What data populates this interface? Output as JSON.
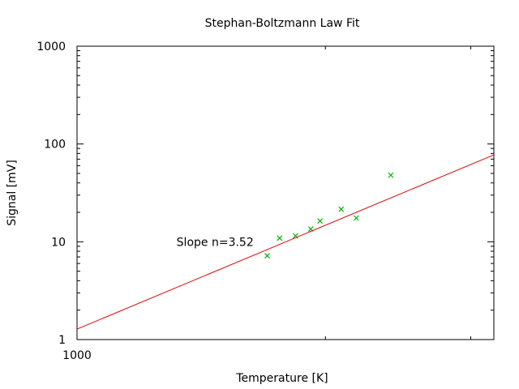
{
  "chart_data": {
    "type": "scatter",
    "title": "Stephan-Boltzmann Law Fit",
    "xlabel": "Temperature [K]",
    "ylabel": "Signal [mV]",
    "x_scale": "log",
    "y_scale": "log",
    "xlim": [
      1000,
      3200
    ],
    "ylim": [
      1,
      1000
    ],
    "x_tick_labels": [
      {
        "value": 1000,
        "label": "1000"
      }
    ],
    "x_minor_ticks": [
      2000,
      3000
    ],
    "y_tick_labels": [
      {
        "value": 1,
        "label": "1"
      },
      {
        "value": 10,
        "label": "10"
      },
      {
        "value": 100,
        "label": "100"
      },
      {
        "value": 1000,
        "label": "1000"
      }
    ],
    "grid": false,
    "annotation": {
      "text": "Slope n=3.52",
      "x": 1320,
      "y": 10
    },
    "series": [
      {
        "type": "scatter",
        "marker": "x",
        "color": "#00b000",
        "points": [
          {
            "x": 1700,
            "y": 7.2
          },
          {
            "x": 1760,
            "y": 10.9
          },
          {
            "x": 1840,
            "y": 11.5
          },
          {
            "x": 1920,
            "y": 13.5
          },
          {
            "x": 1970,
            "y": 16.3
          },
          {
            "x": 2090,
            "y": 21.5
          },
          {
            "x": 2180,
            "y": 17.5
          },
          {
            "x": 2400,
            "y": 48
          }
        ]
      },
      {
        "type": "line",
        "color": "#e00000",
        "slope": 3.52,
        "points": [
          {
            "x": 1000,
            "y": 1.28
          },
          {
            "x": 3200,
            "y": 77.5
          }
        ]
      }
    ]
  }
}
